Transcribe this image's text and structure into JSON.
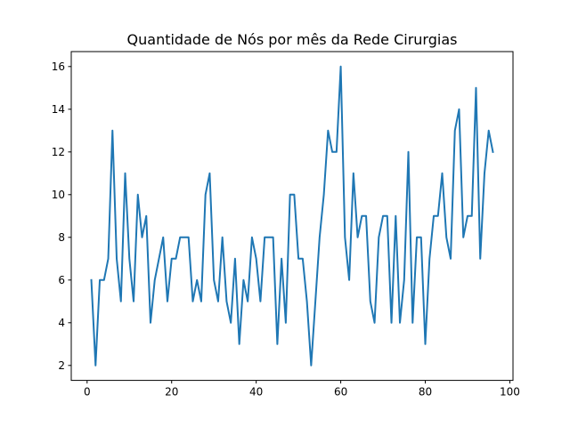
{
  "chart_data": {
    "type": "line",
    "title": "Quantidade de Nós por mês da Rede Cirurgias",
    "xlabel": "",
    "ylabel": "",
    "xlim": [
      -3.75,
      100.75
    ],
    "ylim": [
      1.3,
      16.7
    ],
    "x_ticks": [
      0,
      20,
      40,
      60,
      80,
      100
    ],
    "y_ticks": [
      2,
      4,
      6,
      8,
      10,
      12,
      14,
      16
    ],
    "grid": false,
    "series": [
      {
        "color": "#1f77b4",
        "x": [
          1,
          2,
          3,
          4,
          5,
          6,
          7,
          8,
          9,
          10,
          11,
          12,
          13,
          14,
          15,
          16,
          17,
          18,
          19,
          20,
          21,
          22,
          23,
          24,
          25,
          26,
          27,
          28,
          29,
          30,
          31,
          32,
          33,
          34,
          35,
          36,
          37,
          38,
          39,
          40,
          41,
          42,
          43,
          44,
          45,
          46,
          47,
          48,
          49,
          50,
          51,
          52,
          53,
          54,
          55,
          56,
          57,
          58,
          59,
          60,
          61,
          62,
          63,
          64,
          65,
          66,
          67,
          68,
          69,
          70,
          71,
          72,
          73,
          74,
          75,
          76,
          77,
          78,
          79,
          80,
          81,
          82,
          83,
          84,
          85,
          86,
          87,
          88,
          89,
          90,
          91,
          92,
          93,
          94,
          95,
          96
        ],
        "y": [
          6,
          2,
          6,
          6,
          7,
          13,
          7,
          5,
          11,
          7,
          5,
          10,
          8,
          9,
          4,
          6,
          7,
          8,
          5,
          7,
          7,
          8,
          8,
          8,
          5,
          6,
          5,
          10,
          11,
          6,
          5,
          8,
          5,
          4,
          7,
          3,
          6,
          5,
          8,
          7,
          5,
          8,
          8,
          8,
          3,
          7,
          4,
          10,
          10,
          7,
          7,
          5,
          2,
          5,
          8,
          10,
          13,
          12,
          12,
          16,
          8,
          6,
          11,
          8,
          9,
          9,
          5,
          4,
          8,
          9,
          9,
          4,
          9,
          4,
          6,
          12,
          4,
          8,
          8,
          3,
          7,
          9,
          9,
          11,
          8,
          7,
          13,
          14,
          8,
          9,
          9,
          15,
          7,
          11,
          13,
          12
        ]
      }
    ]
  }
}
